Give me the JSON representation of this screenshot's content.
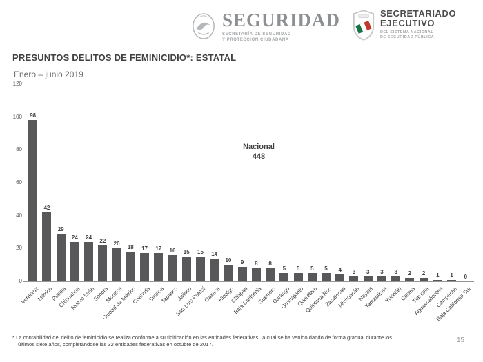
{
  "header": {
    "seguridad": {
      "title": "SEGURIDAD",
      "subtitle_line1": "SECRETARÍA DE SEGURIDAD",
      "subtitle_line2": "Y PROTECCIÓN CIUDADANA"
    },
    "secretariado": {
      "title_line1": "SECRETARIADO",
      "title_line2": "EJECUTIVO",
      "subtitle_line1": "DEL SISTEMA NACIONAL",
      "subtitle_line2": "DE SEGURIDAD PÚBLICA"
    }
  },
  "title": "PRESUNTOS DELITOS DE FEMINICIDIO*: ESTATAL",
  "subtitle": "Enero – junio 2019",
  "annotation": {
    "label": "Nacional",
    "value": "448"
  },
  "footnote": {
    "line1": "* La contabilidad del delito de feminicidio se realiza conforme a su tipificación en las entidades federativas, la cual se ha venido dando de forma gradual durante los",
    "line2": "últimos siete años, completándose las 32 entidades federativas en octubre de 2017."
  },
  "page_number": "15",
  "colors": {
    "bar": "#58585a",
    "logo_gray": "#8d9093",
    "shield_green": "#177245",
    "shield_red": "#c0392b"
  },
  "chart_data": {
    "type": "bar",
    "title": "PRESUNTOS DELITOS DE FEMINICIDIO*: ESTATAL",
    "subtitle": "Enero – junio 2019",
    "categories": [
      "Veracruz",
      "México",
      "Puebla",
      "Chihuahua",
      "Nuevo León",
      "Sonora",
      "Morelos",
      "Ciudad de México",
      "Coahuila",
      "Sinaloa",
      "Tabasco",
      "Jalisco",
      "San Luis Potosí",
      "Oaxaca",
      "Hidalgo",
      "Chiapas",
      "Baja California",
      "Guerrero",
      "Durango",
      "Guanajuato",
      "Querétaro",
      "Quintana Roo",
      "Zacatecas",
      "Michoacán",
      "Nayarit",
      "Tamaulipas",
      "Yucatán",
      "Colima",
      "Tlaxcala",
      "Aguascalientes",
      "Campeche",
      "Baja California Sur"
    ],
    "values": [
      98,
      42,
      29,
      24,
      24,
      22,
      20,
      18,
      17,
      17,
      16,
      15,
      15,
      14,
      10,
      9,
      8,
      8,
      5,
      5,
      5,
      5,
      4,
      3,
      3,
      3,
      3,
      2,
      2,
      1,
      1,
      0
    ],
    "ylim": [
      0,
      120
    ],
    "yticks": [
      0,
      20,
      40,
      60,
      80,
      100,
      120
    ],
    "grid": false,
    "legend": false,
    "annotation": "Nacional 448",
    "national_total": 448,
    "bar_color": "#58585a"
  }
}
